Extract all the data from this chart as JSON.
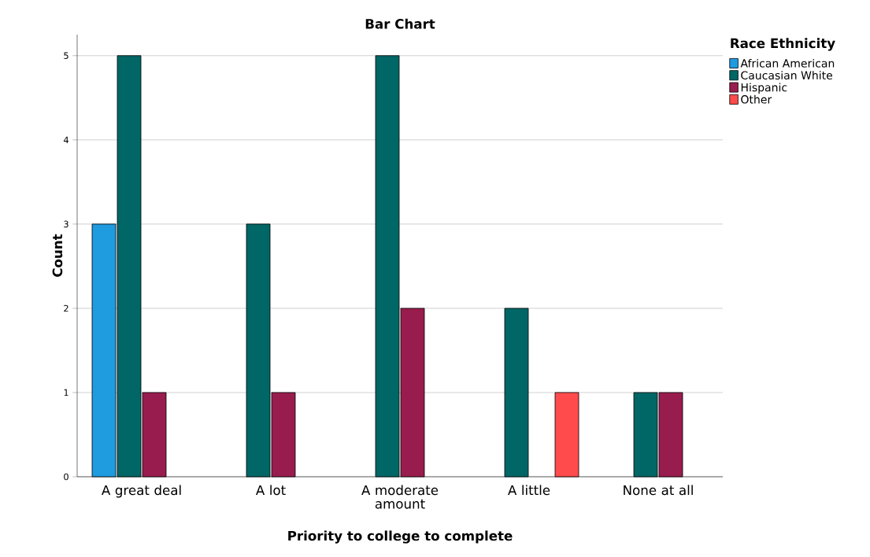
{
  "chart_data": {
    "type": "bar",
    "title": "Bar Chart",
    "xlabel": "Priority to college to complete",
    "ylabel": "Count",
    "legend_title": "Race Ethnicity",
    "categories": [
      "A great deal",
      "A lot",
      "A moderate amount",
      "A little",
      "None at all"
    ],
    "series": [
      {
        "name": "African American",
        "color": "#1f9be0",
        "values": [
          3,
          null,
          null,
          null,
          null
        ]
      },
      {
        "name": "Caucasian White",
        "color": "#006666",
        "values": [
          5,
          3,
          5,
          2,
          1
        ]
      },
      {
        "name": "Hispanic",
        "color": "#991c4e",
        "values": [
          1,
          1,
          2,
          null,
          1
        ]
      },
      {
        "name": "Other",
        "color": "#ff4b4b",
        "values": [
          null,
          null,
          null,
          1,
          null
        ]
      }
    ],
    "ylim": [
      0,
      5.25
    ],
    "yticks": [
      0,
      1,
      2,
      3,
      4,
      5
    ],
    "grid": "y",
    "legend": "top right"
  }
}
